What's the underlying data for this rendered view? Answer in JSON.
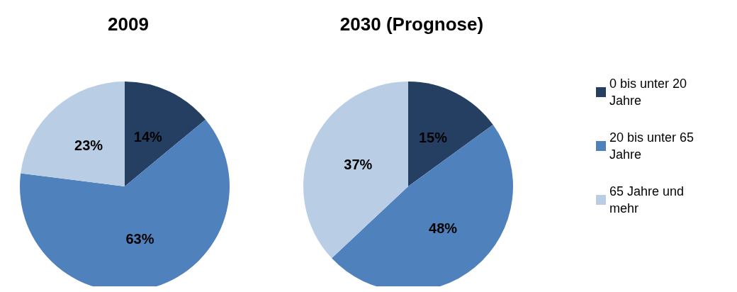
{
  "chart_data": [
    {
      "type": "pie",
      "title": "2009",
      "categories": [
        null,
        null,
        null
      ],
      "values": [
        14,
        63,
        23
      ],
      "value_labels": [
        "14%",
        "63%",
        "23%"
      ],
      "colors": [
        "#253f63",
        "#4f81bd",
        "#b9cde5"
      ],
      "data_labels": true,
      "legend": false
    },
    {
      "type": "pie",
      "title": "2030 (Prognose)",
      "categories": [
        "0 bis unter 20 Jahre",
        "20 bis unter 65 Jahre",
        "65 Jahre und mehr"
      ],
      "values": [
        15,
        48,
        37
      ],
      "value_labels": [
        "15%",
        "48%",
        "37%"
      ],
      "colors": [
        "#253f63",
        "#4f81bd",
        "#b9cde5"
      ],
      "data_labels": true,
      "legend": "right"
    }
  ]
}
